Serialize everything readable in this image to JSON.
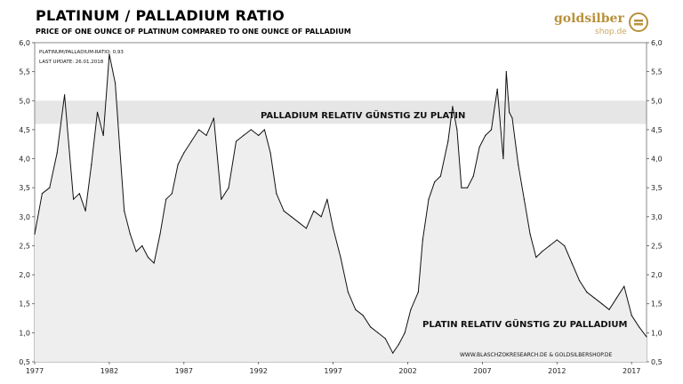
{
  "header": {
    "title": "PLATINUM / PALLADIUM  RATIO",
    "subtitle": "PRICE OF ONE OUNCE OF PLATINUM COMPARED TO ONE OUNCE OF PALLADIUM"
  },
  "logo": {
    "word": "goldsilber",
    "sub": "shop.de",
    "icon": "gold-bar-coin-icon",
    "color": "#b8913c"
  },
  "info": {
    "line1": "PLATINUM/PALLADIUM-RATIO: 0,93",
    "line2": "LAST UPDATE: 26.01.2018"
  },
  "annotations": {
    "upper": "PALLADIUM RELATIV GÜNSTIG ZU PLATIN",
    "lower": "PLATIN RELATIV GÜNSTIG ZU PALLADIUM",
    "credit": "WWW.BLASCHZOKRESEARCH.DE  &  GOLDSILBERSHOP.DE"
  },
  "colors": {
    "line": "#111111",
    "area": "#eeeeee",
    "band": "#e6e6e6"
  },
  "chart_data": {
    "type": "line",
    "title": "PLATINUM / PALLADIUM  RATIO",
    "xlim": [
      1977,
      2018
    ],
    "ylim": [
      0.5,
      6.0
    ],
    "x_ticks": [
      1977,
      1982,
      1987,
      1992,
      1997,
      2002,
      2007,
      2012,
      2017
    ],
    "y_ticks": [
      "0,5",
      "1,0",
      "1,5",
      "2,0",
      "2,5",
      "3,0",
      "3,5",
      "4,0",
      "4,5",
      "5,0",
      "5,5",
      "6,0"
    ],
    "band": [
      4.6,
      5.0
    ],
    "area_fill": true,
    "series": [
      {
        "x": [
          1977.0,
          1977.5,
          1978.0,
          1978.5,
          1979.0,
          1979.3,
          1979.6,
          1980.0,
          1980.4,
          1980.8,
          1981.2,
          1981.6,
          1982.0,
          1982.4,
          1982.7,
          1983.0,
          1983.4,
          1983.8,
          1984.2,
          1984.6,
          1985.0,
          1985.4,
          1985.8,
          1986.2,
          1986.6,
          1987.0,
          1987.5,
          1988.0,
          1988.5,
          1989.0,
          1989.5,
          1990.0,
          1990.5,
          1991.0,
          1991.5,
          1992.0,
          1992.4,
          1992.8,
          1993.2,
          1993.7,
          1994.2,
          1994.7,
          1995.2,
          1995.7,
          1996.2,
          1996.6,
          1997.0,
          1997.5,
          1998.0,
          1998.5,
          1999.0,
          1999.5,
          2000.0,
          2000.5,
          2001.0,
          2001.4,
          2001.8,
          2002.2,
          2002.7,
          2003.0,
          2003.4,
          2003.8,
          2004.2,
          2004.7,
          2005.0,
          2005.3,
          2005.6,
          2006.0,
          2006.4,
          2006.8,
          2007.2,
          2007.6,
          2008.0,
          2008.4,
          2008.6,
          2008.8,
          2009.0,
          2009.4,
          2009.8,
          2010.2,
          2010.6,
          2011.0,
          2011.5,
          2012.0,
          2012.5,
          2013.0,
          2013.5,
          2014.0,
          2014.5,
          2015.0,
          2015.5,
          2016.0,
          2016.5,
          2017.0,
          2017.5,
          2018.0
        ],
        "y": [
          2.7,
          3.4,
          3.5,
          4.1,
          5.1,
          4.2,
          3.3,
          3.4,
          3.1,
          3.9,
          4.8,
          4.4,
          5.8,
          5.3,
          4.2,
          3.1,
          2.7,
          2.4,
          2.5,
          2.3,
          2.2,
          2.7,
          3.3,
          3.4,
          3.9,
          4.1,
          4.3,
          4.5,
          4.4,
          4.7,
          3.3,
          3.5,
          4.3,
          4.4,
          4.5,
          4.4,
          4.5,
          4.1,
          3.4,
          3.1,
          3.0,
          2.9,
          2.8,
          3.1,
          3.0,
          3.3,
          2.8,
          2.3,
          1.7,
          1.4,
          1.3,
          1.1,
          1.0,
          0.9,
          0.65,
          0.8,
          1.0,
          1.4,
          1.7,
          2.6,
          3.3,
          3.6,
          3.7,
          4.3,
          4.9,
          4.5,
          3.5,
          3.5,
          3.7,
          4.2,
          4.4,
          4.5,
          5.2,
          4.0,
          5.5,
          4.8,
          4.7,
          3.9,
          3.3,
          2.7,
          2.3,
          2.4,
          2.5,
          2.6,
          2.5,
          2.2,
          1.9,
          1.7,
          1.6,
          1.5,
          1.4,
          1.6,
          1.8,
          1.3,
          1.1,
          0.93
        ]
      }
    ]
  }
}
